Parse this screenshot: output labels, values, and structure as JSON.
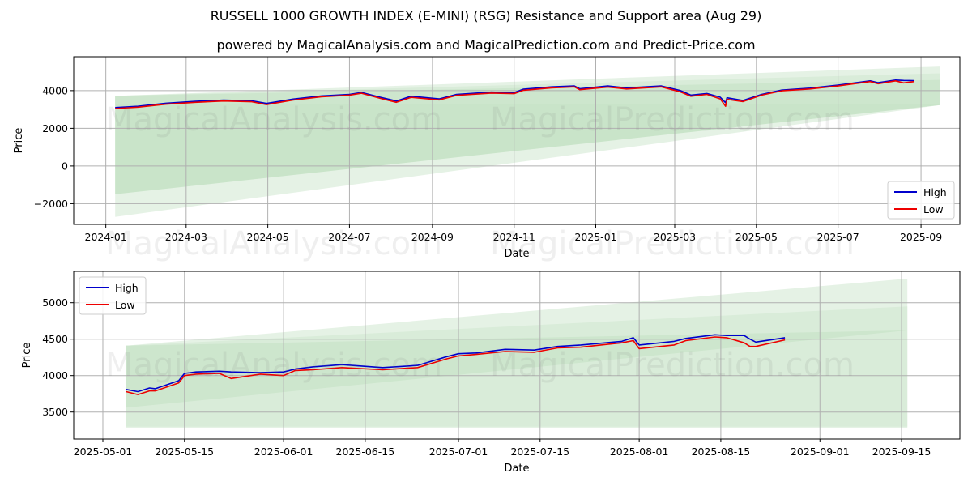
{
  "title": "RUSSELL 1000 GROWTH INDEX (E-MINI) (RSG) Resistance and Support area (Aug 29)",
  "subtitle": "powered by MagicalAnalysis.com and MagicalPrediction.com and Predict-Price.com",
  "watermarks": [
    "MagicalAnalysis.com",
    "MagicalPrediction.com"
  ],
  "colors": {
    "high": "#0000cc",
    "low": "#ee0000",
    "band_dark": "#8cc88c",
    "band_light": "#cfe8cf",
    "grid": "#b0b0b0"
  },
  "chart_data": [
    {
      "type": "line",
      "xlabel": "Date",
      "ylabel": "Price",
      "xlim": [
        "2023-12-08",
        "2025-09-30"
      ],
      "ylim": [
        -3100,
        5800
      ],
      "x_ticks": [
        "2024-01",
        "2024-03",
        "2024-05",
        "2024-07",
        "2024-09",
        "2024-11",
        "2025-01",
        "2025-03",
        "2025-05",
        "2025-07",
        "2025-09"
      ],
      "x_tick_dates": [
        "2024-01-01",
        "2024-03-01",
        "2024-05-01",
        "2024-07-01",
        "2024-09-01",
        "2024-11-01",
        "2025-01-01",
        "2025-03-01",
        "2025-05-01",
        "2025-07-01",
        "2025-09-01"
      ],
      "y_ticks": [
        "−2000",
        "0",
        "2000",
        "4000"
      ],
      "y_tick_values": [
        -2000,
        0,
        2000,
        4000
      ],
      "grid": true,
      "legend_position": "bottom-right",
      "bands": [
        {
          "x": [
            "2024-01-08",
            "2025-09-15"
          ],
          "upper": [
            3720,
            4570
          ],
          "lower": [
            -1500,
            3230
          ],
          "shade": "dark"
        },
        {
          "x": [
            "2024-01-08",
            "2025-09-15"
          ],
          "upper": [
            3720,
            4920
          ],
          "lower": [
            -2700,
            3230
          ],
          "shade": "light"
        },
        {
          "x": [
            "2024-01-08",
            "2025-09-15"
          ],
          "upper": [
            3720,
            5280
          ],
          "lower": [
            3300,
            3300
          ],
          "shade": "light"
        }
      ],
      "series": [
        {
          "name": "High",
          "x": [
            "2024-01-08",
            "2024-01-25",
            "2024-02-15",
            "2024-03-08",
            "2024-03-29",
            "2024-04-19",
            "2024-04-30",
            "2024-05-20",
            "2024-06-10",
            "2024-07-01",
            "2024-07-10",
            "2024-07-24",
            "2024-08-05",
            "2024-08-16",
            "2024-09-06",
            "2024-09-19",
            "2024-10-15",
            "2024-11-01",
            "2024-11-08",
            "2024-11-29",
            "2024-12-16",
            "2024-12-20",
            "2025-01-10",
            "2025-01-24",
            "2025-02-19",
            "2025-03-05",
            "2025-03-13",
            "2025-03-25",
            "2025-04-04",
            "2025-04-08",
            "2025-04-09",
            "2025-04-21",
            "2025-05-05",
            "2025-05-20",
            "2025-06-10",
            "2025-07-01",
            "2025-07-25",
            "2025-07-31",
            "2025-08-13",
            "2025-08-19",
            "2025-08-27"
          ],
          "y": [
            3100,
            3170,
            3330,
            3430,
            3500,
            3460,
            3320,
            3550,
            3720,
            3800,
            3900,
            3650,
            3450,
            3700,
            3560,
            3800,
            3920,
            3890,
            4080,
            4200,
            4250,
            4100,
            4250,
            4140,
            4250,
            4010,
            3760,
            3850,
            3650,
            3360,
            3620,
            3480,
            3800,
            4030,
            4130,
            4290,
            4520,
            4420,
            4560,
            4540,
            4530
          ]
        },
        {
          "name": "Low",
          "x": [
            "2024-01-08",
            "2024-01-25",
            "2024-02-15",
            "2024-03-08",
            "2024-03-29",
            "2024-04-19",
            "2024-04-30",
            "2024-05-20",
            "2024-06-10",
            "2024-07-01",
            "2024-07-10",
            "2024-07-24",
            "2024-08-05",
            "2024-08-16",
            "2024-09-06",
            "2024-09-19",
            "2024-10-15",
            "2024-11-01",
            "2024-11-08",
            "2024-11-29",
            "2024-12-16",
            "2024-12-20",
            "2025-01-10",
            "2025-01-24",
            "2025-02-19",
            "2025-03-05",
            "2025-03-13",
            "2025-03-25",
            "2025-04-04",
            "2025-04-08",
            "2025-04-09",
            "2025-04-21",
            "2025-05-05",
            "2025-05-20",
            "2025-06-10",
            "2025-07-01",
            "2025-07-25",
            "2025-07-31",
            "2025-08-13",
            "2025-08-19",
            "2025-08-27"
          ],
          "y": [
            3050,
            3120,
            3280,
            3380,
            3450,
            3410,
            3260,
            3500,
            3670,
            3760,
            3860,
            3590,
            3380,
            3640,
            3510,
            3750,
            3870,
            3840,
            4020,
            4150,
            4200,
            4050,
            4190,
            4090,
            4200,
            3940,
            3700,
            3800,
            3560,
            3170,
            3540,
            3420,
            3760,
            3990,
            4090,
            4250,
            4480,
            4370,
            4520,
            4410,
            4480
          ]
        }
      ]
    },
    {
      "type": "line",
      "xlabel": "Date",
      "ylabel": "Price",
      "xlim": [
        "2025-04-26",
        "2025-09-25"
      ],
      "ylim": [
        3130,
        5430
      ],
      "x_ticks": [
        "2025-05-01",
        "2025-05-15",
        "2025-06-01",
        "2025-06-15",
        "2025-07-01",
        "2025-07-15",
        "2025-08-01",
        "2025-08-15",
        "2025-09-01",
        "2025-09-15"
      ],
      "y_ticks": [
        "3500",
        "4000",
        "4500",
        "5000"
      ],
      "y_tick_values": [
        3500,
        4000,
        4500,
        5000
      ],
      "grid": true,
      "legend_position": "top-left",
      "bands": [
        {
          "x": [
            "2025-05-05",
            "2025-09-16"
          ],
          "upper": [
            4410,
            4620
          ],
          "lower": [
            3560,
            4620
          ],
          "shade": "dark"
        },
        {
          "x": [
            "2025-05-05",
            "2025-09-16"
          ],
          "upper": [
            4410,
            4950
          ],
          "lower": [
            3300,
            3300
          ],
          "shade": "light"
        },
        {
          "x": [
            "2025-05-05",
            "2025-09-16"
          ],
          "upper": [
            4410,
            5330
          ],
          "lower": [
            3280,
            3280
          ],
          "shade": "light"
        }
      ],
      "series": [
        {
          "name": "High",
          "x": [
            "2025-05-05",
            "2025-05-07",
            "2025-05-09",
            "2025-05-10",
            "2025-05-14",
            "2025-05-15",
            "2025-05-17",
            "2025-05-21",
            "2025-05-23",
            "2025-05-28",
            "2025-06-01",
            "2025-06-03",
            "2025-06-06",
            "2025-06-11",
            "2025-06-18",
            "2025-06-24",
            "2025-06-29",
            "2025-07-01",
            "2025-07-04",
            "2025-07-09",
            "2025-07-14",
            "2025-07-18",
            "2025-07-22",
            "2025-07-29",
            "2025-07-31",
            "2025-08-01",
            "2025-08-07",
            "2025-08-09",
            "2025-08-14",
            "2025-08-16",
            "2025-08-19",
            "2025-08-20",
            "2025-08-21",
            "2025-08-26"
          ],
          "y": [
            3810,
            3780,
            3830,
            3820,
            3930,
            4030,
            4050,
            4060,
            4050,
            4040,
            4050,
            4090,
            4120,
            4150,
            4110,
            4140,
            4260,
            4300,
            4310,
            4360,
            4350,
            4400,
            4420,
            4470,
            4520,
            4420,
            4470,
            4510,
            4560,
            4550,
            4550,
            4500,
            4460,
            4520
          ]
        },
        {
          "name": "Low",
          "x": [
            "2025-05-05",
            "2025-05-07",
            "2025-05-09",
            "2025-05-10",
            "2025-05-14",
            "2025-05-15",
            "2025-05-17",
            "2025-05-21",
            "2025-05-23",
            "2025-05-28",
            "2025-06-01",
            "2025-06-03",
            "2025-06-06",
            "2025-06-11",
            "2025-06-18",
            "2025-06-24",
            "2025-06-29",
            "2025-07-01",
            "2025-07-04",
            "2025-07-09",
            "2025-07-14",
            "2025-07-18",
            "2025-07-22",
            "2025-07-29",
            "2025-07-31",
            "2025-08-01",
            "2025-08-07",
            "2025-08-09",
            "2025-08-14",
            "2025-08-16",
            "2025-08-19",
            "2025-08-20",
            "2025-08-21",
            "2025-08-26"
          ],
          "y": [
            3780,
            3740,
            3790,
            3790,
            3900,
            4000,
            4020,
            4030,
            3960,
            4020,
            4000,
            4070,
            4080,
            4110,
            4080,
            4110,
            4230,
            4270,
            4290,
            4330,
            4320,
            4380,
            4390,
            4450,
            4480,
            4370,
            4420,
            4480,
            4530,
            4520,
            4450,
            4400,
            4400,
            4490
          ]
        }
      ]
    }
  ]
}
